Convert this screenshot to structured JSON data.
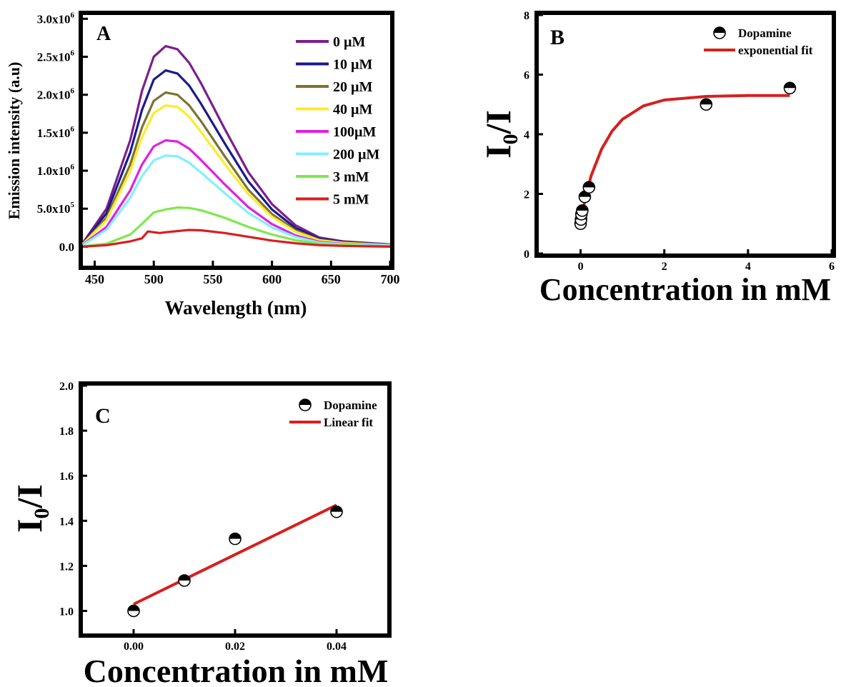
{
  "chart_data": [
    {
      "panel": "A",
      "type": "line",
      "xlabel": "Wavelength (nm)",
      "ylabel": "Emission intensity (a.u)",
      "xlim": [
        440,
        700
      ],
      "ylim": [
        -250000,
        3050000
      ],
      "xticks": [
        450,
        500,
        550,
        600,
        650,
        700
      ],
      "xtick_labels": [
        "450",
        "500",
        "550",
        "600",
        "650",
        "700"
      ],
      "yticks": [
        0,
        500000,
        1000000,
        1500000,
        2000000,
        2500000,
        3000000
      ],
      "ytick_labels": [
        {
          "mant": "0.0",
          "exp": ""
        },
        {
          "mant": "5.0x10",
          "exp": "5"
        },
        {
          "mant": "1.0x10",
          "exp": "6"
        },
        {
          "mant": "1.5x10",
          "exp": "6"
        },
        {
          "mant": "2.0x10",
          "exp": "6"
        },
        {
          "mant": "2.5x10",
          "exp": "6"
        },
        {
          "mant": "3.0x10",
          "exp": "6"
        }
      ],
      "legend_position": "top-right",
      "series": [
        {
          "name": "0 µM",
          "color": "#7b1e8c",
          "peak": 2640000,
          "x": [
            440,
            460,
            480,
            490,
            500,
            510,
            520,
            530,
            540,
            560,
            580,
            600,
            620,
            640,
            660,
            680,
            700
          ],
          "y": [
            50000,
            500000,
            1400000,
            2050000,
            2500000,
            2640000,
            2600000,
            2420000,
            2150000,
            1550000,
            980000,
            560000,
            280000,
            120000,
            70000,
            50000,
            30000
          ]
        },
        {
          "name": "10 µM",
          "color": "#1a1a8c",
          "peak": 2320000,
          "x": [
            440,
            460,
            480,
            490,
            500,
            510,
            520,
            530,
            540,
            560,
            580,
            600,
            620,
            640,
            660,
            680,
            700
          ],
          "y": [
            45000,
            440000,
            1240000,
            1800000,
            2200000,
            2320000,
            2280000,
            2120000,
            1880000,
            1360000,
            860000,
            490000,
            245000,
            105000,
            62000,
            45000,
            27000
          ]
        },
        {
          "name": "20 µM",
          "color": "#7a7432",
          "peak": 2030000,
          "x": [
            440,
            460,
            480,
            490,
            500,
            510,
            520,
            530,
            540,
            560,
            580,
            600,
            620,
            640,
            660,
            680,
            700
          ],
          "y": [
            40000,
            380000,
            1080000,
            1570000,
            1920000,
            2030000,
            2000000,
            1860000,
            1650000,
            1190000,
            750000,
            430000,
            215000,
            92000,
            54000,
            40000,
            24000
          ]
        },
        {
          "name": "40 µM",
          "color": "#ffea2a",
          "peak": 1860000,
          "x": [
            440,
            460,
            480,
            490,
            500,
            510,
            520,
            530,
            540,
            560,
            580,
            600,
            620,
            640,
            660,
            680,
            700
          ],
          "y": [
            36000,
            350000,
            990000,
            1440000,
            1760000,
            1860000,
            1840000,
            1710000,
            1510000,
            1090000,
            690000,
            395000,
            197000,
            84000,
            50000,
            36000,
            22000
          ]
        },
        {
          "name": "100µM",
          "color": "#e020e0",
          "peak": 1400000,
          "x": [
            440,
            460,
            480,
            490,
            500,
            510,
            520,
            530,
            540,
            560,
            580,
            600,
            620,
            640,
            660,
            680,
            700
          ],
          "y": [
            27000,
            260000,
            740000,
            1080000,
            1320000,
            1400000,
            1385000,
            1290000,
            1140000,
            820000,
            520000,
            297000,
            148000,
            63000,
            37000,
            27000,
            16000
          ]
        },
        {
          "name": "200 µM",
          "color": "#7ff0ff",
          "peak": 1200000,
          "x": [
            440,
            460,
            480,
            490,
            500,
            510,
            520,
            530,
            540,
            560,
            580,
            600,
            620,
            640,
            660,
            680,
            700
          ],
          "y": [
            23000,
            225000,
            640000,
            930000,
            1135000,
            1200000,
            1190000,
            1105000,
            975000,
            705000,
            445000,
            255000,
            127000,
            54000,
            32000,
            23000,
            14000
          ]
        },
        {
          "name": "3 mM",
          "color": "#7ee84a",
          "peak": 520000,
          "x": [
            440,
            460,
            480,
            490,
            500,
            510,
            520,
            530,
            540,
            560,
            580,
            600,
            620,
            640,
            660,
            680,
            700
          ],
          "y": [
            5000,
            40000,
            160000,
            300000,
            450000,
            490000,
            515000,
            510000,
            480000,
            380000,
            260000,
            160000,
            85000,
            40000,
            20000,
            10000,
            5000
          ]
        },
        {
          "name": "5 mM",
          "color": "#d81e1e",
          "peak": 220000,
          "x": [
            440,
            460,
            480,
            490,
            495,
            500,
            505,
            510,
            520,
            530,
            540,
            560,
            580,
            600,
            620,
            640,
            660,
            680,
            700
          ],
          "y": [
            0,
            20000,
            70000,
            110000,
            200000,
            190000,
            180000,
            190000,
            205000,
            220000,
            215000,
            180000,
            130000,
            80000,
            45000,
            20000,
            10000,
            5000,
            0
          ]
        }
      ]
    },
    {
      "panel": "B",
      "type": "scatter",
      "xlabel": "Concentration  in mM",
      "ylabel_main": "I",
      "ylabel_sub": "0",
      "ylabel_tail": "/I",
      "xlim": [
        -1,
        6
      ],
      "ylim": [
        0,
        8
      ],
      "xticks": [
        0,
        2,
        4,
        6
      ],
      "xtick_labels": [
        "0",
        "2",
        "4",
        "6"
      ],
      "yticks": [
        0,
        2,
        4,
        6,
        8
      ],
      "ytick_labels": [
        "0",
        "2",
        "4",
        "6",
        "8"
      ],
      "legend_position": "top-right",
      "legend": [
        "Dopamine",
        "exponential fit"
      ],
      "points": {
        "x": [
          0,
          0.01,
          0.02,
          0.04,
          0.1,
          0.2,
          3,
          5
        ],
        "y": [
          1.0,
          1.14,
          1.32,
          1.44,
          1.9,
          2.22,
          5.0,
          5.55
        ]
      },
      "fit": {
        "x": [
          0,
          0.1,
          0.25,
          0.5,
          0.75,
          1.0,
          1.5,
          2.0,
          3.0,
          4.0,
          5.0
        ],
        "y": [
          1.1,
          1.75,
          2.6,
          3.5,
          4.1,
          4.5,
          4.95,
          5.15,
          5.27,
          5.3,
          5.3
        ],
        "color": "#d81e1e"
      }
    },
    {
      "panel": "C",
      "type": "scatter",
      "xlabel": "Concentration in mM",
      "ylabel_main": "I",
      "ylabel_sub": "0",
      "ylabel_tail": "/I",
      "xlim": [
        -0.01,
        0.05
      ],
      "ylim": [
        0.9,
        2.0
      ],
      "xticks": [
        0.0,
        0.02,
        0.04
      ],
      "xtick_labels": [
        "0.00",
        "0.02",
        "0.04"
      ],
      "yticks": [
        1.0,
        1.2,
        1.4,
        1.6,
        1.8,
        2.0
      ],
      "ytick_labels": [
        "1.0",
        "1.2",
        "1.4",
        "1.6",
        "1.8",
        "2.0"
      ],
      "legend_position": "top-right",
      "legend": [
        "Dopamine",
        "Linear fit"
      ],
      "points": {
        "x": [
          0.0,
          0.01,
          0.02,
          0.04
        ],
        "y": [
          1.0,
          1.135,
          1.32,
          1.44
        ]
      },
      "fit": {
        "x": [
          0.0,
          0.04
        ],
        "y": [
          1.03,
          1.47
        ],
        "color": "#d81e1e"
      }
    }
  ]
}
